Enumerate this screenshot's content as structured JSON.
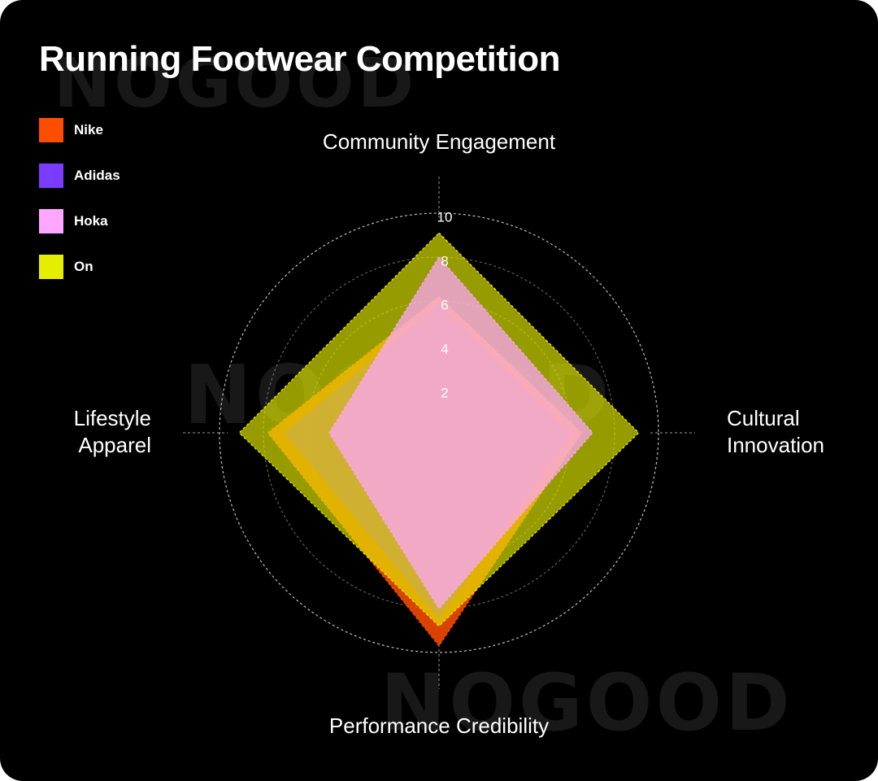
{
  "title": "Running Footwear Competition",
  "watermark": "NOGOOD",
  "colors": {
    "background": "#000000",
    "text": "#ffffff",
    "grid": "#cfcfcf",
    "watermark": "#181818"
  },
  "chart_data": {
    "type": "radar",
    "title": "Running Footwear Competition",
    "axes": [
      [
        "Community Engagement"
      ],
      [
        "Cultural",
        "Innovation"
      ],
      [
        "Performance Credibility"
      ],
      [
        "Lifestyle",
        "Apparel"
      ]
    ],
    "rlim": [
      0,
      10
    ],
    "ticks": [
      "2",
      "4",
      "6",
      "8",
      "10"
    ],
    "tick_values": [
      2,
      4,
      6,
      8,
      10
    ],
    "grid": true,
    "legend": "top-left",
    "series": [
      {
        "name": "Nike",
        "color": "#ff4d00",
        "opacity": 0.85,
        "values": [
          6.2,
          6.5,
          9.7,
          7.8
        ]
      },
      {
        "name": "Adidas",
        "color": "#7a3cff",
        "opacity": 0.55,
        "values": [
          5.8,
          6.0,
          8.4,
          7.0
        ]
      },
      {
        "name": "On",
        "color": "#e6ee00",
        "opacity": 0.65,
        "values": [
          9.1,
          9.1,
          8.8,
          9.1
        ]
      },
      {
        "name": "Hoka",
        "color": "#ffa6ff",
        "opacity": 0.72,
        "values": [
          8.0,
          7.0,
          8.0,
          5.0
        ]
      }
    ],
    "legend_order": [
      "Nike",
      "Adidas",
      "Hoka",
      "On"
    ]
  }
}
